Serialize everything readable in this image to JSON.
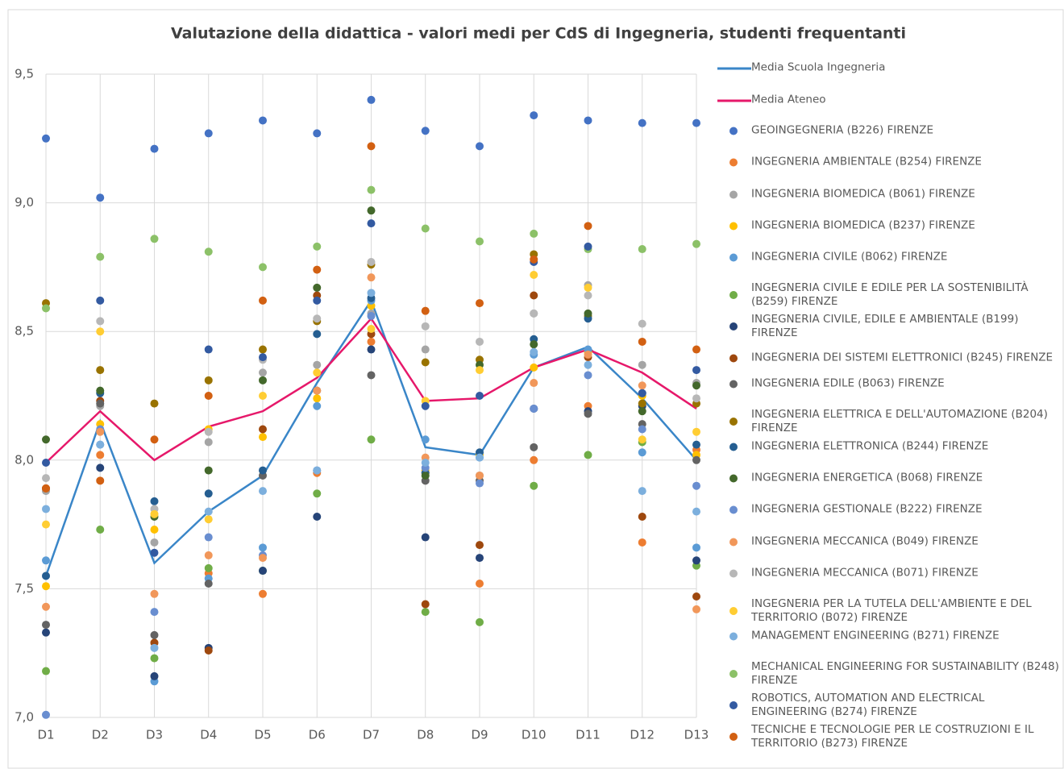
{
  "chart_data": {
    "type": "line",
    "title": "Valutazione della didattica - valori medi per CdS di Ingegneria, studenti frequentanti",
    "categories": [
      "D1",
      "D2",
      "D3",
      "D4",
      "D5",
      "D6",
      "D7",
      "D8",
      "D9",
      "D10",
      "D11",
      "D12",
      "D13"
    ],
    "ylim": [
      7,
      9.5
    ],
    "yticks": [
      {
        "value": 7,
        "label": "7,0"
      },
      {
        "value": 7.5,
        "label": "7,5"
      },
      {
        "value": 8,
        "label": "8,0"
      },
      {
        "value": 8.5,
        "label": "8,5"
      },
      {
        "value": 9,
        "label": "9,0"
      },
      {
        "value": 9.5,
        "label": "9,5"
      }
    ],
    "grid": true,
    "legend": "right",
    "series": [
      {
        "name": "Media Scuola Ingegneria",
        "type": "line",
        "color": "#3a86c8",
        "values": [
          7.55,
          8.15,
          7.6,
          7.8,
          7.94,
          8.3,
          8.62,
          8.05,
          8.02,
          8.36,
          8.44,
          8.24,
          8.0
        ]
      },
      {
        "name": "Media Ateneo",
        "type": "line",
        "color": "#e6186a",
        "values": [
          7.99,
          8.19,
          8.0,
          8.13,
          8.19,
          8.32,
          8.55,
          8.23,
          8.24,
          8.36,
          8.43,
          8.34,
          8.2
        ]
      },
      {
        "name": "GEOINGEGNERIA (B226) FIRENZE",
        "type": "scatter",
        "color": "#4472c4",
        "values": [
          9.25,
          9.02,
          9.21,
          9.27,
          9.32,
          9.27,
          9.4,
          9.28,
          9.22,
          9.34,
          9.32,
          9.31,
          9.31
        ]
      },
      {
        "name": "INGEGNERIA AMBIENTALE (B254) FIRENZE",
        "type": "scatter",
        "color": "#ed7d31",
        "values": [
          7.89,
          8.02,
          7.29,
          7.56,
          7.48,
          7.95,
          8.46,
          7.95,
          7.52,
          8.0,
          8.21,
          7.68,
          8.04
        ]
      },
      {
        "name": "INGEGNERIA BIOMEDICA (B061) FIRENZE",
        "type": "scatter",
        "color": "#a5a5a5",
        "values": [
          7.88,
          8.21,
          7.68,
          8.07,
          8.34,
          8.37,
          8.57,
          8.43,
          7.94,
          8.57,
          8.68,
          8.37,
          8.3
        ]
      },
      {
        "name": "INGEGNERIA BIOMEDICA (B237) FIRENZE",
        "type": "scatter",
        "color": "#ffc000",
        "values": [
          7.51,
          8.14,
          7.73,
          8.12,
          8.09,
          8.24,
          8.6,
          7.96,
          8.02,
          8.36,
          8.42,
          8.25,
          8.02
        ]
      },
      {
        "name": "INGEGNERIA CIVILE (B062) FIRENZE",
        "type": "scatter",
        "color": "#5b9bd5",
        "values": [
          7.61,
          8.06,
          7.14,
          7.54,
          7.66,
          8.21,
          8.62,
          8.08,
          8.01,
          8.41,
          8.43,
          8.03,
          7.66
        ]
      },
      {
        "name": "INGEGNERIA CIVILE E EDILE PER LA SOSTENIBILITÀ (B259) FIRENZE",
        "type": "scatter",
        "color": "#70ad47",
        "values": [
          7.18,
          7.73,
          7.23,
          7.58,
          7.57,
          7.87,
          8.08,
          7.41,
          7.37,
          7.9,
          8.02,
          8.07,
          7.59
        ]
      },
      {
        "name": "INGEGNERIA CIVILE, EDILE E AMBIENTALE (B199) FIRENZE",
        "type": "scatter",
        "color": "#264478",
        "values": [
          7.33,
          7.97,
          7.16,
          7.27,
          7.57,
          7.78,
          8.43,
          7.7,
          7.62,
          8.2,
          8.19,
          8.21,
          7.61
        ]
      },
      {
        "name": "INGEGNERIA DEI SISTEMI ELETTRONICI (B245) FIRENZE",
        "type": "scatter",
        "color": "#9e480e",
        "values": [
          7.89,
          8.23,
          7.29,
          7.26,
          8.12,
          8.64,
          8.49,
          7.44,
          7.67,
          8.64,
          8.4,
          7.78,
          7.47
        ]
      },
      {
        "name": "INGEGNERIA EDILE (B063) FIRENZE",
        "type": "scatter",
        "color": "#636363",
        "values": [
          7.36,
          8.22,
          7.32,
          7.52,
          7.94,
          8.27,
          8.33,
          7.92,
          7.92,
          8.05,
          8.18,
          8.14,
          8.0
        ]
      },
      {
        "name": "INGEGNERIA ELETTRICA E DELL'AUTOMAZIONE (B204) FIRENZE",
        "type": "scatter",
        "color": "#997300",
        "values": [
          8.61,
          8.35,
          8.22,
          8.31,
          8.43,
          8.54,
          8.76,
          8.38,
          8.39,
          8.8,
          8.56,
          8.22,
          8.22
        ]
      },
      {
        "name": "INGEGNERIA ELETTRONICA (B244) FIRENZE",
        "type": "scatter",
        "color": "#255e91",
        "values": [
          7.55,
          8.26,
          7.84,
          7.87,
          7.96,
          8.49,
          8.63,
          7.95,
          8.03,
          8.47,
          8.55,
          8.26,
          8.06
        ]
      },
      {
        "name": "INGEGNERIA ENERGETICA (B068) FIRENZE",
        "type": "scatter",
        "color": "#43682b",
        "values": [
          8.08,
          8.27,
          7.78,
          7.96,
          8.31,
          8.67,
          8.97,
          7.94,
          8.37,
          8.45,
          8.57,
          8.19,
          8.29
        ]
      },
      {
        "name": "INGEGNERIA GESTIONALE (B222) FIRENZE",
        "type": "scatter",
        "color": "#698ed0",
        "values": [
          7.01,
          8.12,
          7.41,
          7.7,
          7.63,
          7.96,
          8.56,
          7.97,
          7.91,
          8.2,
          8.33,
          8.12,
          7.9
        ]
      },
      {
        "name": "INGEGNERIA MECCANICA (B049) FIRENZE",
        "type": "scatter",
        "color": "#f1975a",
        "values": [
          7.43,
          8.11,
          7.48,
          7.63,
          7.62,
          8.27,
          8.71,
          8.01,
          7.94,
          8.3,
          8.41,
          8.29,
          7.42
        ]
      },
      {
        "name": "INGEGNERIA MECCANICA (B071) FIRENZE",
        "type": "scatter",
        "color": "#b7b7b7",
        "values": [
          7.93,
          8.54,
          7.81,
          8.11,
          8.39,
          8.55,
          8.77,
          8.52,
          8.46,
          8.57,
          8.64,
          8.53,
          8.24
        ]
      },
      {
        "name": "INGEGNERIA PER LA TUTELA DELL'AMBIENTE E DEL TERRITORIO (B072) FIRENZE",
        "type": "scatter",
        "color": "#ffcd33",
        "values": [
          7.75,
          8.5,
          7.79,
          7.77,
          8.25,
          8.34,
          8.51,
          8.23,
          8.35,
          8.72,
          8.67,
          8.08,
          8.11
        ]
      },
      {
        "name": "MANAGEMENT ENGINEERING (B271) FIRENZE",
        "type": "scatter",
        "color": "#7cafdd",
        "values": [
          7.81,
          8.06,
          7.27,
          7.8,
          7.88,
          7.96,
          8.65,
          7.99,
          8.01,
          8.42,
          8.37,
          7.88,
          7.8
        ]
      },
      {
        "name": "MECHANICAL ENGINEERING FOR SUSTAINABILITY (B248) FIRENZE",
        "type": "scatter",
        "color": "#8cc168",
        "values": [
          8.59,
          8.79,
          8.86,
          8.81,
          8.75,
          8.83,
          9.05,
          8.9,
          8.85,
          8.88,
          8.82,
          8.82,
          8.84
        ]
      },
      {
        "name": "ROBOTICS, AUTOMATION AND ELECTRICAL ENGINEERING (B274) FIRENZE",
        "type": "scatter",
        "color": "#335aa1",
        "values": [
          7.99,
          8.62,
          7.64,
          8.43,
          8.4,
          8.62,
          8.92,
          8.21,
          8.25,
          8.77,
          8.83,
          8.26,
          8.35
        ]
      },
      {
        "name": "TECNICHE E TECNOLOGIE PER LE COSTRUZIONI E IL TERRITORIO (B273) FIRENZE",
        "type": "scatter",
        "color": "#d26012",
        "values": [
          7.89,
          7.92,
          8.08,
          8.25,
          8.62,
          8.74,
          9.22,
          8.58,
          8.61,
          8.78,
          8.91,
          8.46,
          8.43
        ]
      }
    ]
  }
}
